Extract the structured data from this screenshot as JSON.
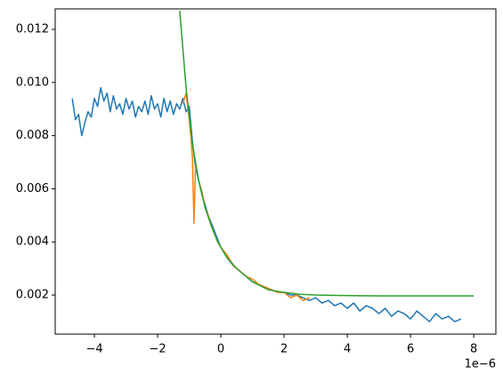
{
  "chart_data": {
    "type": "line",
    "x_offset_label": "1e−6",
    "xlim": [
      -5.24,
      8.7
    ],
    "ylim": [
      0.00053,
      0.01277
    ],
    "xticks": [
      {
        "value": -4,
        "label": "−4"
      },
      {
        "value": -2,
        "label": "−2"
      },
      0,
      2,
      4,
      6,
      8
    ],
    "yticks": [
      0.002,
      0.004,
      0.006,
      0.008,
      {
        "value": 0.01,
        "label": "0.010"
      },
      0.012
    ],
    "series": [
      {
        "color": "#1f77b4",
        "x": [
          -4.7,
          -4.6,
          -4.5,
          -4.4,
          -4.3,
          -4.2,
          -4.1,
          -4.0,
          -3.9,
          -3.8,
          -3.7,
          -3.6,
          -3.5,
          -3.4,
          -3.3,
          -3.2,
          -3.1,
          -3.0,
          -2.9,
          -2.8,
          -2.7,
          -2.6,
          -2.5,
          -2.4,
          -2.3,
          -2.2,
          -2.1,
          -2.0,
          -1.9,
          -1.8,
          -1.7,
          -1.6,
          -1.5,
          -1.4,
          -1.3,
          -1.2,
          -1.1,
          -1.0,
          -0.9,
          -0.8,
          -0.6,
          -0.4,
          -0.2,
          0.0,
          0.2,
          0.4,
          0.6,
          0.8,
          1.0,
          1.2,
          1.4,
          1.6,
          1.8,
          2.0,
          2.2,
          2.4,
          2.6,
          2.8,
          3.0,
          3.2,
          3.4,
          3.6,
          3.8,
          4.0,
          4.2,
          4.4,
          4.6,
          4.8,
          5.0,
          5.2,
          5.4,
          5.6,
          5.8,
          6.0,
          6.2,
          6.4,
          6.6,
          6.8,
          7.0,
          7.2,
          7.4,
          7.6
        ],
        "values": [
          0.0094,
          0.0086,
          0.0088,
          0.008,
          0.0085,
          0.0089,
          0.0087,
          0.0094,
          0.0091,
          0.0098,
          0.0093,
          0.0096,
          0.0089,
          0.0095,
          0.009,
          0.0092,
          0.0088,
          0.0094,
          0.009,
          0.0093,
          0.0087,
          0.0091,
          0.0089,
          0.0093,
          0.0088,
          0.0095,
          0.009,
          0.0092,
          0.0087,
          0.0094,
          0.0089,
          0.0093,
          0.0088,
          0.0092,
          0.009,
          0.0094,
          0.0089,
          0.0091,
          0.0078,
          0.0068,
          0.0058,
          0.005,
          0.0044,
          0.0038,
          0.0034,
          0.0031,
          0.0029,
          0.0027,
          0.0025,
          0.0024,
          0.0023,
          0.0022,
          0.0021,
          0.0021,
          0.002,
          0.002,
          0.0019,
          0.0018,
          0.0019,
          0.0017,
          0.0018,
          0.0016,
          0.0017,
          0.0015,
          0.0017,
          0.0014,
          0.0016,
          0.0015,
          0.0013,
          0.0015,
          0.0012,
          0.0014,
          0.0013,
          0.0011,
          0.0014,
          0.0012,
          0.001,
          0.0013,
          0.0011,
          0.0012,
          0.001,
          0.0011
        ]
      },
      {
        "color": "#ff7f0e",
        "x": [
          -1.2,
          -1.1,
          -1.0,
          -0.95,
          -0.9,
          -0.85,
          -0.8,
          -0.7,
          -0.6,
          -0.5,
          -0.4,
          -0.3,
          -0.2,
          -0.1,
          0.0,
          0.2,
          0.4,
          0.6,
          0.8,
          1.0,
          1.2,
          1.4,
          1.6,
          1.8,
          2.0,
          2.2,
          2.4,
          2.6,
          2.8
        ],
        "values": [
          0.0092,
          0.0096,
          0.0086,
          0.008,
          0.0072,
          0.0047,
          0.0069,
          0.0063,
          0.0059,
          0.0053,
          0.005,
          0.0046,
          0.0043,
          0.004,
          0.0038,
          0.0035,
          0.0031,
          0.0029,
          0.0027,
          0.0026,
          0.0024,
          0.0023,
          0.0022,
          0.0021,
          0.0021,
          0.0019,
          0.002,
          0.0018,
          0.0019
        ]
      },
      {
        "color": "#2ca02c",
        "x": [
          -1.3,
          -1.1,
          -0.9,
          -0.7,
          -0.5,
          -0.3,
          -0.1,
          0.2,
          0.5,
          1.0,
          1.5,
          2.0,
          2.5,
          3.0,
          4.0,
          5.0,
          6.0,
          7.0,
          8.0
        ],
        "values": [
          0.0127,
          0.0098,
          0.0077,
          0.0063,
          0.0053,
          0.0046,
          0.004,
          0.0034,
          0.003,
          0.0025,
          0.0022,
          0.0021,
          0.00203,
          0.002,
          0.00198,
          0.00197,
          0.00197,
          0.00197,
          0.00197
        ]
      }
    ]
  }
}
